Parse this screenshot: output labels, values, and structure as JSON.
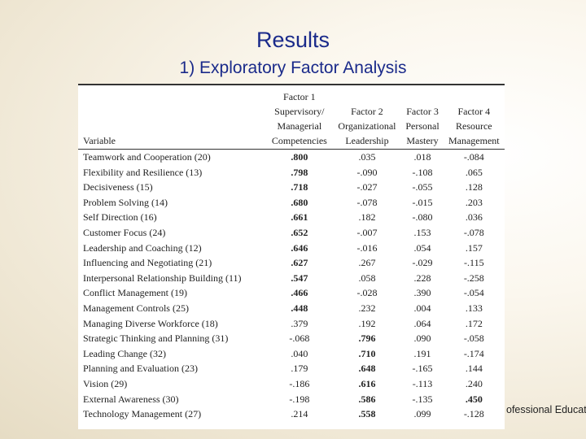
{
  "title": "Results",
  "subtitle": "1) Exploratory Factor Analysis",
  "table": {
    "variable_header": "Variable",
    "factor_headers": [
      {
        "line1": "Factor 1",
        "line2": "Supervisory/",
        "line3": "Managerial",
        "line4": "Competencies"
      },
      {
        "line1": "",
        "line2": "Factor 2",
        "line3": "Organizational",
        "line4": "Leadership"
      },
      {
        "line1": "",
        "line2": "Factor 3",
        "line3": "Personal",
        "line4": "Mastery"
      },
      {
        "line1": "",
        "line2": "Factor 4",
        "line3": "Resource",
        "line4": "Management"
      }
    ],
    "rows": [
      {
        "variable": "Teamwork and Cooperation (20)",
        "values": [
          ".800",
          ".035",
          ".018",
          "-.084"
        ],
        "bold": [
          true,
          false,
          false,
          false
        ]
      },
      {
        "variable": "Flexibility and Resilience (13)",
        "values": [
          ".798",
          "-.090",
          "-.108",
          ".065"
        ],
        "bold": [
          true,
          false,
          false,
          false
        ]
      },
      {
        "variable": "Decisiveness (15)",
        "values": [
          ".718",
          "-.027",
          "-.055",
          ".128"
        ],
        "bold": [
          true,
          false,
          false,
          false
        ]
      },
      {
        "variable": "Problem Solving (14)",
        "values": [
          ".680",
          "-.078",
          "-.015",
          ".203"
        ],
        "bold": [
          true,
          false,
          false,
          false
        ]
      },
      {
        "variable": "Self Direction (16)",
        "values": [
          ".661",
          ".182",
          "-.080",
          ".036"
        ],
        "bold": [
          true,
          false,
          false,
          false
        ]
      },
      {
        "variable": "Customer Focus (24)",
        "values": [
          ".652",
          "-.007",
          ".153",
          "-.078"
        ],
        "bold": [
          true,
          false,
          false,
          false
        ]
      },
      {
        "variable": "Leadership and Coaching (12)",
        "values": [
          ".646",
          "-.016",
          ".054",
          ".157"
        ],
        "bold": [
          true,
          false,
          false,
          false
        ]
      },
      {
        "variable": "Influencing and Negotiating (21)",
        "values": [
          ".627",
          ".267",
          "-.029",
          "-.115"
        ],
        "bold": [
          true,
          false,
          false,
          false
        ]
      },
      {
        "variable": "Interpersonal Relationship Building (11)",
        "values": [
          ".547",
          ".058",
          ".228",
          "-.258"
        ],
        "bold": [
          true,
          false,
          false,
          false
        ]
      },
      {
        "variable": "Conflict Management (19)",
        "values": [
          ".466",
          "-.028",
          ".390",
          "-.054"
        ],
        "bold": [
          true,
          false,
          false,
          false
        ]
      },
      {
        "variable": "Management Controls (25)",
        "values": [
          ".448",
          ".232",
          ".004",
          ".133"
        ],
        "bold": [
          true,
          false,
          false,
          false
        ]
      },
      {
        "variable": "Managing Diverse Workforce (18)",
        "values": [
          ".379",
          ".192",
          ".064",
          ".172"
        ],
        "bold": [
          false,
          false,
          false,
          false
        ]
      },
      {
        "variable": "Strategic Thinking and Planning (31)",
        "values": [
          "-.068",
          ".796",
          ".090",
          "-.058"
        ],
        "bold": [
          false,
          true,
          false,
          false
        ]
      },
      {
        "variable": "Leading Change (32)",
        "values": [
          ".040",
          ".710",
          ".191",
          "-.174"
        ],
        "bold": [
          false,
          true,
          false,
          false
        ]
      },
      {
        "variable": "Planning and Evaluation (23)",
        "values": [
          ".179",
          ".648",
          "-.165",
          ".144"
        ],
        "bold": [
          false,
          true,
          false,
          false
        ]
      },
      {
        "variable": "Vision (29)",
        "values": [
          "-.186",
          ".616",
          "-.113",
          ".240"
        ],
        "bold": [
          false,
          true,
          false,
          false
        ]
      },
      {
        "variable": "External Awareness (30)",
        "values": [
          "-.198",
          ".586",
          "-.135",
          ".450"
        ],
        "bold": [
          false,
          true,
          false,
          true
        ]
      },
      {
        "variable": "Technology Management (27)",
        "values": [
          ".214",
          ".558",
          ".099",
          "-.128"
        ],
        "bold": [
          false,
          true,
          false,
          false
        ]
      }
    ]
  },
  "watermark": "ofessional Education"
}
